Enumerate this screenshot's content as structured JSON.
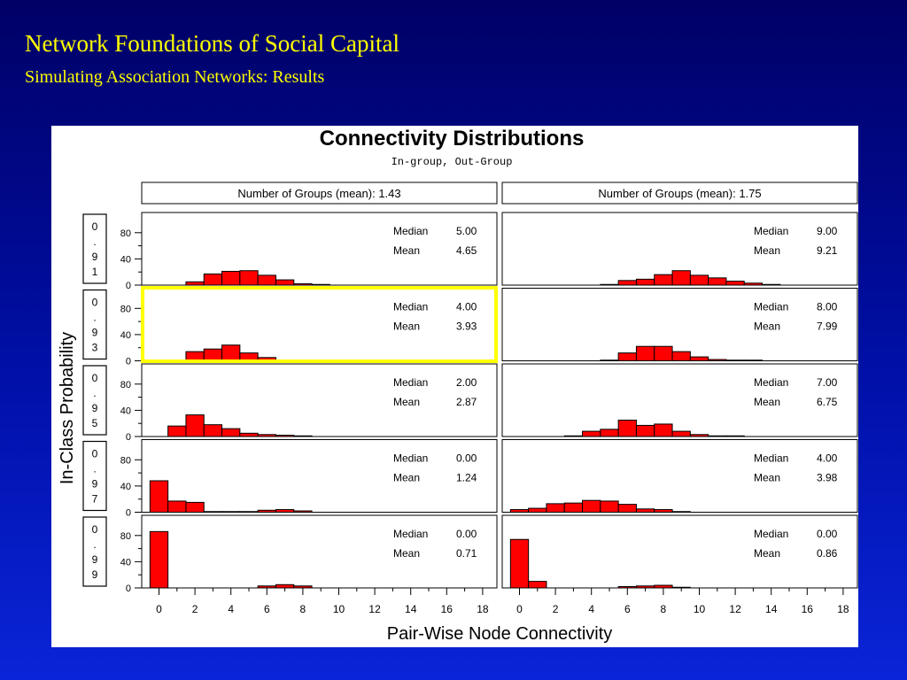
{
  "slide": {
    "title": "Network Foundations of Social Capital",
    "subtitle": "Simulating Association Networks: Results"
  },
  "chart_data": {
    "type": "bar",
    "title": "Connectivity Distributions",
    "subtitle": "In-group, Out-Group",
    "xlabel": "Pair-Wise Node Connectivity",
    "ylabel": "In-Class Probability",
    "x_ticks": [
      "0",
      "2",
      "4",
      "6",
      "8",
      "10",
      "12",
      "14",
      "16",
      "18"
    ],
    "xlim": [
      -1,
      18.5
    ],
    "y_ticks": [
      "0",
      "40",
      "80"
    ],
    "ylim": [
      0,
      100
    ],
    "stat_labels": {
      "median": "Median",
      "mean": "Mean"
    },
    "highlight": {
      "row": 1,
      "col": 0,
      "color": "#ffff00"
    },
    "bar_color": "#ff0000",
    "columns": [
      {
        "header": "Number of Groups (mean):  1.43"
      },
      {
        "header": "Number of Groups (mean):  1.75"
      }
    ],
    "rows": [
      {
        "label": "0.91"
      },
      {
        "label": "0.93"
      },
      {
        "label": "0.95"
      },
      {
        "label": "0.97"
      },
      {
        "label": "0.99"
      }
    ],
    "panels": [
      {
        "row": 0,
        "col": 0,
        "median": "5.00",
        "mean": "4.65",
        "bins": [
          0,
          1,
          2,
          3,
          4,
          5,
          6,
          7,
          8,
          9
        ],
        "values": [
          0,
          0,
          5,
          17,
          21,
          22,
          15,
          8,
          2,
          1
        ]
      },
      {
        "row": 0,
        "col": 1,
        "median": "9.00",
        "mean": "9.21",
        "bins": [
          5,
          6,
          7,
          8,
          9,
          10,
          11,
          12,
          13,
          14
        ],
        "values": [
          1,
          7,
          9,
          16,
          22,
          15,
          11,
          6,
          3,
          1
        ]
      },
      {
        "row": 1,
        "col": 0,
        "median": "4.00",
        "mean": "3.93",
        "bins": [
          0,
          1,
          2,
          3,
          4,
          5,
          6,
          7,
          8
        ],
        "values": [
          0,
          0,
          14,
          18,
          24,
          12,
          5,
          1,
          1
        ]
      },
      {
        "row": 1,
        "col": 1,
        "median": "8.00",
        "mean": "7.99",
        "bins": [
          5,
          6,
          7,
          8,
          9,
          10,
          11,
          12,
          13
        ],
        "values": [
          1,
          12,
          22,
          22,
          14,
          6,
          2,
          1,
          1
        ]
      },
      {
        "row": 2,
        "col": 0,
        "median": "2.00",
        "mean": "2.87",
        "bins": [
          0,
          1,
          2,
          3,
          4,
          5,
          6,
          7,
          8
        ],
        "values": [
          0,
          16,
          33,
          18,
          12,
          5,
          3,
          2,
          1
        ]
      },
      {
        "row": 2,
        "col": 1,
        "median": "7.00",
        "mean": "6.75",
        "bins": [
          3,
          4,
          5,
          6,
          7,
          8,
          9,
          10,
          11,
          12
        ],
        "values": [
          1,
          8,
          11,
          25,
          17,
          19,
          8,
          3,
          1,
          1
        ]
      },
      {
        "row": 3,
        "col": 0,
        "median": "0.00",
        "mean": "1.24",
        "bins": [
          0,
          1,
          2,
          3,
          4,
          5,
          6,
          7,
          8
        ],
        "values": [
          48,
          17,
          15,
          1,
          1,
          1,
          3,
          4,
          2
        ]
      },
      {
        "row": 3,
        "col": 1,
        "median": "4.00",
        "mean": "3.98",
        "bins": [
          0,
          1,
          2,
          3,
          4,
          5,
          6,
          7,
          8,
          9
        ],
        "values": [
          4,
          6,
          13,
          14,
          18,
          17,
          12,
          5,
          4,
          1
        ]
      },
      {
        "row": 4,
        "col": 0,
        "median": "0.00",
        "mean": "0.71",
        "bins": [
          0,
          1,
          2,
          3,
          4,
          5,
          6,
          7,
          8
        ],
        "values": [
          86,
          0,
          0,
          0,
          0,
          0,
          3,
          5,
          3
        ]
      },
      {
        "row": 4,
        "col": 1,
        "median": "0.00",
        "mean": "0.86",
        "bins": [
          0,
          1,
          2,
          3,
          4,
          5,
          6,
          7,
          8,
          9
        ],
        "values": [
          74,
          10,
          0,
          0,
          0,
          0,
          2,
          3,
          4,
          1
        ]
      }
    ]
  }
}
